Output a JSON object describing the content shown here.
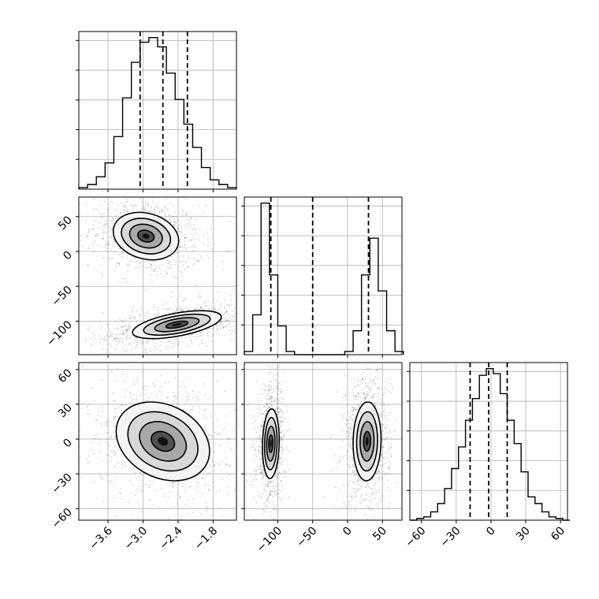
{
  "chart_data": {
    "type": "corner",
    "note_params": [
      "p0",
      "p1",
      "p2"
    ],
    "params": [
      {
        "range": [
          -4.1,
          -1.4
        ],
        "ticks": [
          -3.6,
          -3.0,
          -2.4,
          -1.8
        ],
        "tick_labels": [
          "−3.6",
          "−3.0",
          "−2.4",
          "−1.8"
        ],
        "quantiles": [
          -3.05,
          -2.66,
          -2.24
        ]
      },
      {
        "range": [
          -148,
          78
        ],
        "ticks_x": [
          -100,
          -50,
          0,
          50
        ],
        "tick_labels_x": [
          "−100",
          "−50",
          "0",
          "50"
        ],
        "ticks_y": [
          -100,
          -50,
          0,
          50
        ],
        "tick_labels_y": [
          "−100",
          "−50",
          "0",
          "50"
        ],
        "quantiles": [
          -110,
          -50,
          30
        ]
      },
      {
        "range": [
          -70,
          66
        ],
        "ticks": [
          -60,
          -30,
          0,
          30,
          60
        ],
        "tick_labels": [
          "−60",
          "−30",
          "0",
          "30",
          "60"
        ],
        "quantiles": [
          -18,
          -2,
          14
        ]
      }
    ],
    "hist_0": {
      "x": [
        -4.1,
        -3.95,
        -3.8,
        -3.65,
        -3.5,
        -3.35,
        -3.2,
        -3.05,
        -2.9,
        -2.75,
        -2.6,
        -2.45,
        -2.3,
        -2.15,
        -2.0,
        -1.85,
        -1.7,
        -1.55
      ],
      "counts": [
        1,
        3,
        8,
        17,
        34,
        59,
        82,
        95,
        98,
        92,
        75,
        58,
        42,
        27,
        14,
        6,
        3,
        1
      ]
    },
    "hist_1": {
      "x": [
        -148,
        -136,
        -124,
        -112,
        -100,
        -88,
        -76,
        -64,
        -52,
        -40,
        -28,
        -16,
        -4,
        8,
        20,
        32,
        44,
        56,
        68
      ],
      "counts": [
        2,
        25,
        95,
        50,
        18,
        2,
        0,
        0,
        0,
        0,
        0,
        0,
        2,
        15,
        50,
        73,
        40,
        15,
        2
      ]
    },
    "hist_2": {
      "x": [
        -70,
        -64,
        -58,
        -52,
        -46,
        -40,
        -34,
        -28,
        -22,
        -16,
        -10,
        -4,
        2,
        8,
        14,
        20,
        26,
        32,
        38,
        44,
        50,
        56,
        62
      ],
      "counts": [
        0,
        1,
        2,
        5,
        10,
        19,
        31,
        44,
        60,
        73,
        87,
        91,
        88,
        76,
        60,
        46,
        29,
        14,
        10,
        5,
        2,
        1,
        0
      ]
    },
    "modes_10": [
      {
        "cx": -2.95,
        "cy": 22,
        "sx": 0.28,
        "sy": 17,
        "rho": -0.2
      },
      {
        "cx": -2.42,
        "cy": -105,
        "sx": 0.38,
        "sy": 10,
        "rho": 0.55
      }
    ],
    "modes_20": [
      {
        "cx": -2.66,
        "cy": -2,
        "sx": 0.4,
        "sy": 17,
        "rho": -0.25
      }
    ],
    "modes_21": [
      {
        "cx": -110,
        "cy": -4,
        "sx": 6,
        "sy": 15,
        "rho": 0.1
      },
      {
        "cx": 28,
        "cy": -2,
        "sx": 10,
        "sy": 17,
        "rho": 0.05
      }
    ]
  }
}
